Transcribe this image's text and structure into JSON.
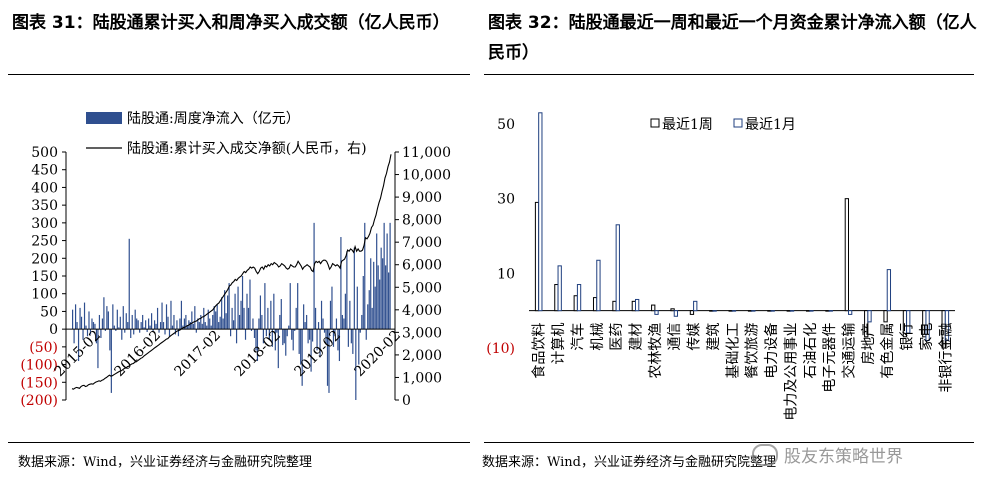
{
  "left_title": "图表 31：陆股通累计买入和周净买入成交额（亿人民币）",
  "right_title": "图表 32：陆股通最近一周和最近一个月资金累计净流入额（亿人民币）",
  "left_source": "数据来源：Wind，兴业证券经济与金融研究院整理",
  "right_source": "数据来源：Wind，兴业证券经济与金融研究院整理",
  "watermark": "股友东策略世界",
  "colors": {
    "bar_fill": "#2f4f8f",
    "negative_label": "#c00000",
    "line": "#000000"
  },
  "chart_data": [
    {
      "type": "bar",
      "legend": [
        "陆股通:周度净流入（亿元）",
        "陆股通:累计买入成交净额(人民币，右)"
      ],
      "left_axis": {
        "ticks": [
          500,
          450,
          400,
          350,
          300,
          250,
          200,
          150,
          100,
          50,
          0,
          -50,
          -100,
          -150,
          -200
        ],
        "tick_labels": [
          "500",
          "450",
          "400",
          "350",
          "300",
          "250",
          "200",
          "150",
          "100",
          "50",
          "0",
          "(50)",
          "(100)",
          "(150)",
          "(200)"
        ],
        "range": [
          -200,
          500
        ]
      },
      "right_axis": {
        "ticks": [
          11000,
          10000,
          9000,
          8000,
          7000,
          6000,
          5000,
          4000,
          3000,
          2000,
          1000,
          0
        ],
        "tick_labels": [
          "11,000",
          "10,000",
          "9,000",
          "8,000",
          "7,000",
          "6,000",
          "5,000",
          "4,000",
          "3,000",
          "2,000",
          "1,000",
          "0"
        ],
        "range": [
          0,
          11000
        ]
      },
      "x_tick_labels": [
        "2015-02",
        "2016-02",
        "2017-02",
        "2018-02",
        "2019-02",
        "2020-02"
      ],
      "weekly_net_inflow": [
        55,
        -40,
        70,
        20,
        -90,
        60,
        35,
        -30,
        75,
        10,
        -20,
        50,
        -15,
        30,
        20,
        15,
        -40,
        -110,
        40,
        -25,
        30,
        90,
        -5,
        65,
        50,
        -60,
        -180,
        70,
        10,
        -5,
        55,
        5,
        35,
        -30,
        65,
        -10,
        45,
        20,
        255,
        -25,
        40,
        -15,
        55,
        30,
        25,
        -10,
        20,
        40,
        5,
        25,
        -8,
        30,
        10,
        45,
        -5,
        25,
        15,
        60,
        -10,
        20,
        75,
        20,
        -15,
        70,
        35,
        -20,
        80,
        10,
        40,
        -15,
        25,
        -20,
        30,
        80,
        10,
        30,
        40,
        10,
        25,
        20,
        50,
        15,
        65,
        -10,
        30,
        20,
        40,
        15,
        60,
        20,
        10,
        55,
        30,
        10,
        40,
        65,
        50,
        70,
        20,
        35,
        90,
        30,
        110,
        45,
        95,
        130,
        -20,
        60,
        25,
        100,
        -40,
        120,
        40,
        80,
        150,
        60,
        -30,
        100,
        60,
        140,
        -5,
        30,
        -25,
        -60,
        -90,
        30,
        95,
        40,
        -40,
        130,
        -20,
        60,
        -30,
        80,
        -50,
        100,
        -60,
        -10,
        -110,
        40,
        85,
        -45,
        -40,
        -75,
        -20,
        10,
        130,
        -30,
        -60,
        -5,
        60,
        130,
        -70,
        -100,
        -160,
        70,
        20,
        40,
        -40,
        -30,
        -120,
        -35,
        300,
        60,
        -60,
        20,
        -80,
        80,
        30,
        -10,
        -40,
        -160,
        -180,
        80,
        120,
        -50,
        -20,
        30,
        -60,
        -90,
        260,
        40,
        30,
        100,
        220,
        -50,
        80,
        -40,
        -70,
        230,
        -200,
        120,
        -100,
        -10,
        40,
        150,
        300,
        -30,
        70,
        110,
        200,
        60,
        190,
        120,
        270,
        180,
        140,
        230,
        200,
        300,
        180,
        270,
        160,
        300
      ],
      "cumulative_net_buy": [
        500,
        480,
        530,
        560,
        540,
        520,
        600,
        640,
        650,
        600,
        620,
        680,
        700,
        720,
        700,
        760,
        800,
        820,
        850,
        830,
        880,
        900,
        960,
        1000,
        1050,
        1100,
        1060,
        1080,
        1120,
        1160,
        1200,
        1240,
        1280,
        1300,
        1350,
        1400,
        1420,
        1480,
        1500,
        1560,
        1600,
        1620,
        1680,
        1700,
        1750,
        1800,
        1850,
        1880,
        1950,
        2000,
        2050,
        2100,
        2150,
        2200,
        2250,
        2300,
        2350,
        2400,
        2450,
        2500,
        2550,
        2600,
        2650,
        2700,
        2720,
        2800,
        2850,
        2900,
        2950,
        3000,
        3050,
        3080,
        3100,
        3150,
        3200,
        3220,
        3250,
        3300,
        3320,
        3380,
        3400,
        3450,
        3480,
        3500,
        3550,
        3600,
        3620,
        3680,
        3700,
        3750,
        3800,
        3850,
        3900,
        3950,
        4000,
        4100,
        4180,
        4250,
        4300,
        4400,
        4500,
        4600,
        4700,
        4800,
        4900,
        5050,
        5100,
        5200,
        5250,
        5350,
        5300,
        5400,
        5450,
        5500,
        5600,
        5700,
        5650,
        5750,
        5800,
        5900,
        5850,
        5900,
        5850,
        5700,
        5600,
        5700,
        5850,
        5900,
        5800,
        5950,
        5900,
        6000,
        5950,
        6050,
        6000,
        6100,
        6050,
        6000,
        5900,
        5950,
        6050,
        6000,
        5950,
        5850,
        5800,
        5850,
        6000,
        5950,
        5900,
        5900,
        6000,
        6150,
        6050,
        5950,
        5800,
        5900,
        5950,
        6000,
        5950,
        5900,
        5750,
        5700,
        6050,
        6150,
        6100,
        6150,
        6050,
        6150,
        6200,
        6200,
        6150,
        6000,
        5800,
        5900,
        6050,
        6000,
        5950,
        6000,
        5950,
        5850,
        6150,
        6200,
        6250,
        6400,
        6650,
        6600,
        6700,
        6650,
        6550,
        6800,
        6600,
        6700,
        6600,
        6600,
        6650,
        6850,
        7200,
        7150,
        7250,
        7400,
        7650,
        7750,
        8000,
        8200,
        8500,
        8750,
        8950,
        9250,
        9500,
        9850,
        10050,
        10350,
        10550,
        10900
      ]
    },
    {
      "type": "bar",
      "legend": [
        "最近1周",
        "最近1月"
      ],
      "y_axis": {
        "ticks": [
          50,
          30,
          10,
          -10
        ],
        "tick_labels": [
          "50",
          "30",
          "10",
          "(10)"
        ],
        "range": [
          -10,
          50
        ]
      },
      "categories": [
        "食品饮料",
        "计算机",
        "汽车",
        "机械",
        "医药",
        "建材",
        "农林牧渔",
        "通信",
        "传媒",
        "建筑",
        "基础化工",
        "餐饮旅游",
        "电力设备",
        "电力及公用事业",
        "石油石化",
        "电子元器件",
        "交通运输",
        "房地产",
        "有色金属",
        "银行",
        "家电",
        "非银行金融"
      ],
      "series": [
        {
          "name": "最近1周",
          "values": [
            29,
            7,
            4,
            3.5,
            2.5,
            2.5,
            1.5,
            0.5,
            -1,
            0,
            0,
            0,
            0,
            0,
            0,
            0,
            30,
            -7,
            -3,
            -7,
            -7,
            -10
          ]
        },
        {
          "name": "最近1月",
          "values": [
            53,
            12,
            7,
            13.5,
            23,
            3,
            -1,
            -1.5,
            2.5,
            0,
            0,
            0,
            0,
            0,
            0,
            0,
            -1,
            -3,
            11,
            -6,
            -8,
            -8
          ]
        }
      ]
    }
  ]
}
